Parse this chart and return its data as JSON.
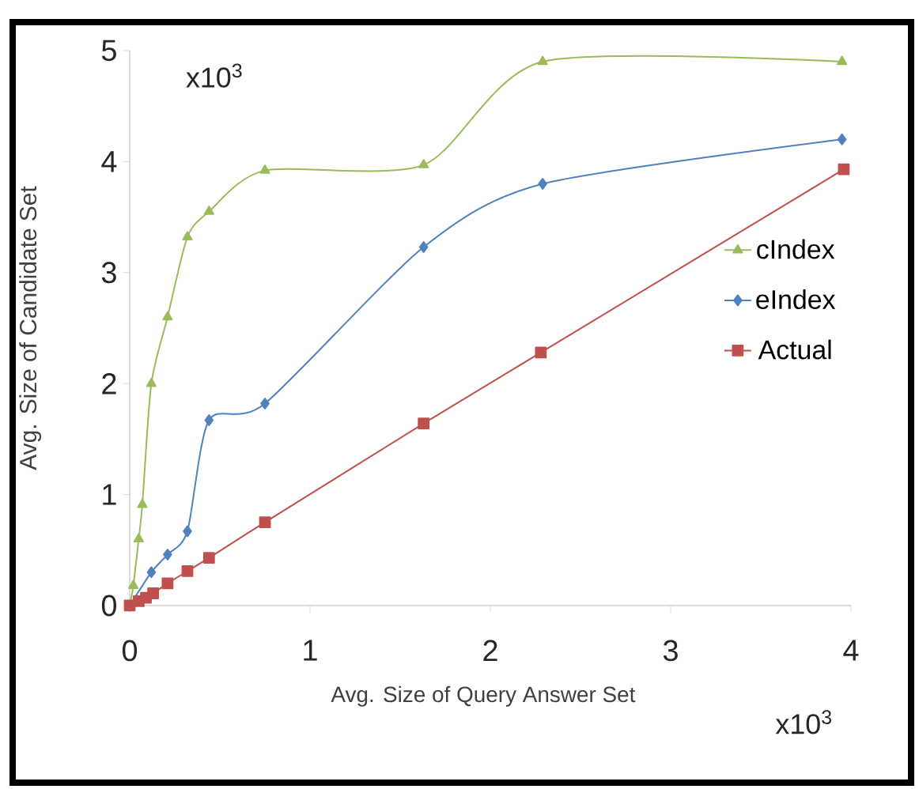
{
  "chart_data": {
    "type": "line",
    "xlabel": "Avg. Size of Query Answer Set",
    "ylabel": "Avg. Size of Candidate Set",
    "annotations": [
      "x10$^{3}$",
      "x10$^{3}$"
    ],
    "xlim": [
      0,
      4
    ],
    "xticks": [
      0,
      1,
      2,
      3,
      4
    ],
    "ylim": [
      0,
      5
    ],
    "yticks": [
      0,
      1,
      2,
      3,
      4,
      5
    ],
    "grid": false,
    "legend": "right",
    "line_style": "solid",
    "series": [
      {
        "name": "cIndex",
        "color": "#9bbb59",
        "marker": "triangle",
        "x": [
          0,
          0.02,
          0.05,
          0.07,
          0.12,
          0.21,
          0.32,
          0.44,
          0.75,
          1.63,
          2.29,
          3.95
        ],
        "values": [
          0,
          0.18,
          0.6,
          0.91,
          2.0,
          2.6,
          3.32,
          3.55,
          3.92,
          3.97,
          4.9,
          4.9
        ]
      },
      {
        "name": "eIndex",
        "color": "#4f81bd",
        "marker": "diamond",
        "x": [
          0,
          0.04,
          0.12,
          0.21,
          0.32,
          0.44,
          0.75,
          1.63,
          2.29,
          3.95
        ],
        "values": [
          0,
          null,
          0.3,
          0.46,
          0.67,
          1.67,
          1.82,
          3.23,
          3.8,
          4.2
        ]
      },
      {
        "name": "Actual",
        "color": "#c0504d",
        "marker": "square",
        "x": [
          0,
          0.05,
          0.09,
          0.13,
          0.21,
          0.32,
          0.44,
          0.75,
          1.63,
          2.28,
          3.96
        ],
        "values": [
          0,
          0.04,
          0.07,
          0.11,
          0.2,
          0.31,
          0.43,
          0.75,
          1.64,
          2.28,
          3.93
        ]
      }
    ]
  }
}
